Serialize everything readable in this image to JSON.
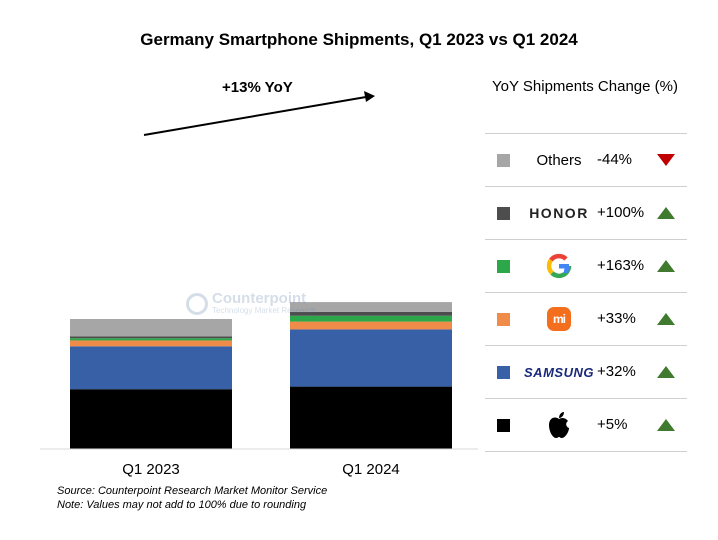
{
  "title": "Germany Smartphone Shipments, Q1 2023 vs Q1 2024",
  "annotation": "+13% YoY",
  "legend_header": "YoY Shipments Change (%)",
  "watermark": {
    "name": "Counterpoint",
    "subtitle": "Technology Market Research"
  },
  "footnotes": {
    "source": "Source: Counterpoint Research Market Monitor Service",
    "note": "Note: Values may not add to 100% due to rounding"
  },
  "legend": [
    {
      "label": "Others",
      "logo": "text",
      "color": "#a6a6a6",
      "change": "-44%",
      "direction": "down"
    },
    {
      "label": "HONOR",
      "logo": "honor-logo",
      "color": "#4d4d4d",
      "change": "+100%",
      "direction": "up"
    },
    {
      "label": "Google",
      "logo": "google-logo",
      "color": "#2ca84a",
      "change": "+163%",
      "direction": "up"
    },
    {
      "label": "Xiaomi",
      "logo": "mi-logo",
      "color": "#f08c4a",
      "change": "+33%",
      "direction": "up"
    },
    {
      "label": "SAMSUNG",
      "logo": "samsung-logo",
      "color": "#3760a6",
      "change": "+32%",
      "direction": "up"
    },
    {
      "label": "Apple",
      "logo": "apple-logo",
      "color": "#000000",
      "change": "+5%",
      "direction": "up"
    }
  ],
  "chart_data": {
    "type": "bar",
    "stacked": true,
    "title": "Germany Smartphone Shipments, Q1 2023 vs Q1 2024",
    "categories": [
      "Q1 2023",
      "Q1 2024"
    ],
    "series": [
      {
        "name": "Apple",
        "color": "#000000",
        "values": [
          46,
          48
        ]
      },
      {
        "name": "Samsung",
        "color": "#3760a6",
        "values": [
          33,
          44
        ]
      },
      {
        "name": "Xiaomi",
        "color": "#f08c4a",
        "values": [
          4.5,
          6
        ]
      },
      {
        "name": "Google",
        "color": "#2ca84a",
        "values": [
          1.7,
          4.5
        ]
      },
      {
        "name": "HONOR",
        "color": "#4d4d4d",
        "values": [
          1.5,
          3
        ]
      },
      {
        "name": "Others",
        "color": "#a6a6a6",
        "values": [
          13.3,
          7.5
        ]
      }
    ],
    "annotation": "+13% YoY",
    "grid": false,
    "legend_position": "right"
  }
}
